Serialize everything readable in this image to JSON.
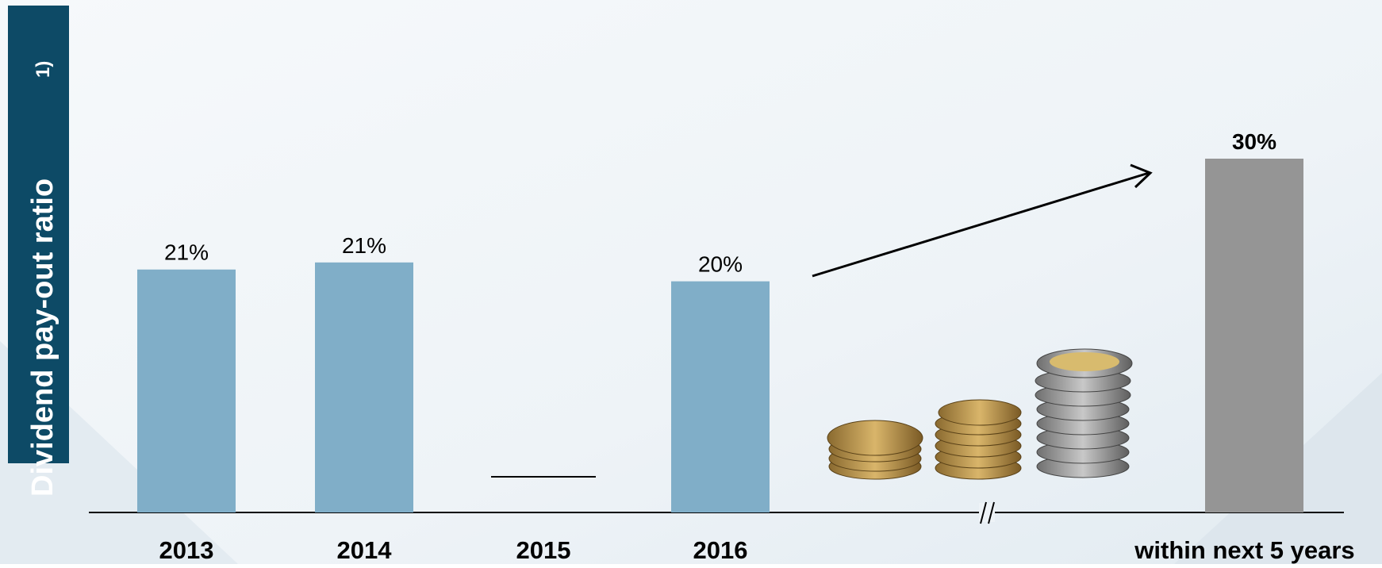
{
  "chart_data": {
    "type": "bar",
    "y_label": "Dividend pay-out ratio",
    "y_label_note": "1)",
    "categories": [
      "2013",
      "2014",
      "2015",
      "2016",
      "within next 5 years"
    ],
    "values": [
      20.6,
      21.2,
      null,
      19.6,
      30
    ],
    "value_labels": [
      "21%",
      "21%",
      null,
      "20%",
      "30%"
    ],
    "colors": [
      "#80aec8",
      "#80aec8",
      "#80aec8",
      "#80aec8",
      "#959595"
    ],
    "ylim": [
      0,
      30
    ]
  }
}
